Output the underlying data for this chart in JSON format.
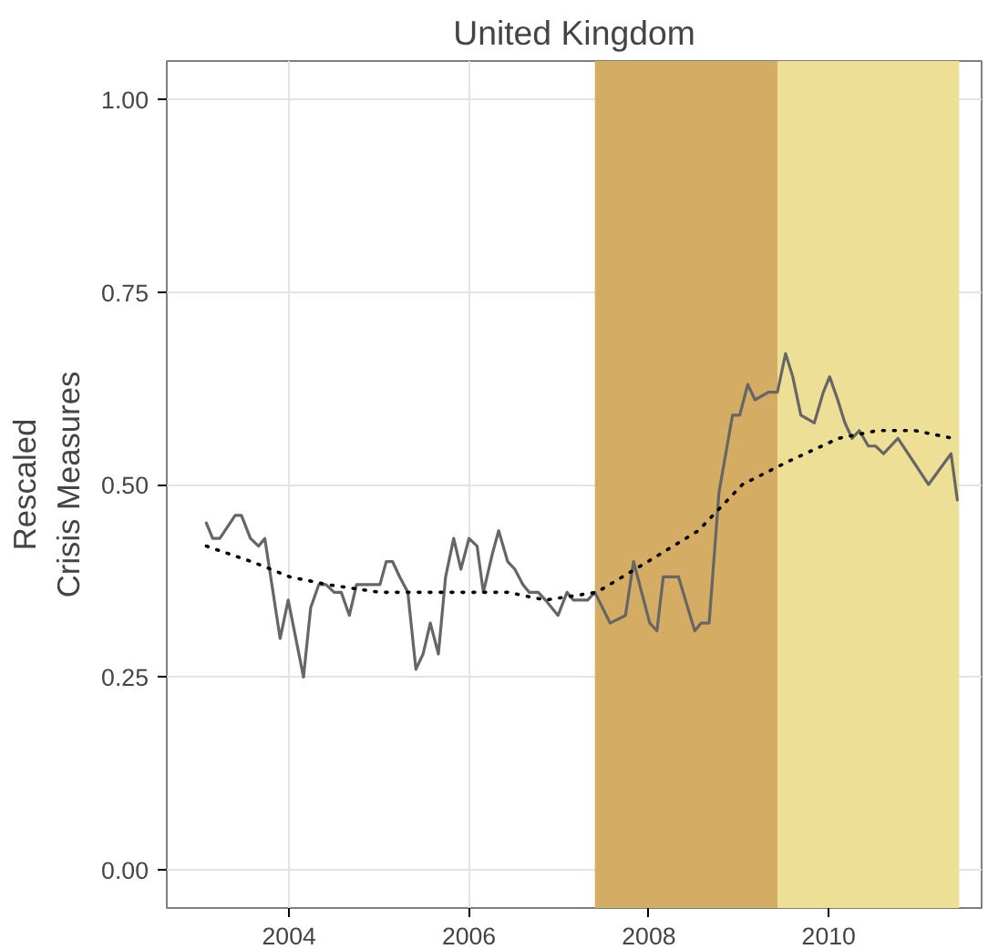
{
  "chart_data": {
    "type": "line",
    "title": "United Kingdom",
    "ylabel": "Rescaled\nCrisis Measures",
    "xlim": [
      2002.64,
      2011.7
    ],
    "ylim": [
      -0.05,
      1.05
    ],
    "xticks": [
      2004,
      2006,
      2008,
      2010
    ],
    "yticks": [
      {
        "value": 0,
        "label": "0.00"
      },
      {
        "value": 0.25,
        "label": "0.25"
      },
      {
        "value": 0.5,
        "label": "0.50"
      },
      {
        "value": 0.75,
        "label": "0.75"
      },
      {
        "value": 1,
        "label": "1.00"
      }
    ],
    "grid": true,
    "bands": [
      {
        "axis": "x",
        "from": 2007.4,
        "to": 2009.43,
        "color": "#d4ac64"
      },
      {
        "axis": "x",
        "from": 2009.43,
        "to": 2011.45,
        "color": "#ede096"
      }
    ],
    "series": [
      {
        "color": "#666666",
        "line_style": "solid",
        "x": [
          2003.08,
          2003.15,
          2003.23,
          2003.4,
          2003.47,
          2003.57,
          2003.66,
          2003.73,
          2003.9,
          2003.99,
          2004.16,
          2004.24,
          2004.33,
          2004.41,
          2004.5,
          2004.58,
          2004.67,
          2004.75,
          2004.84,
          2004.92,
          2005.01,
          2005.08,
          2005.15,
          2005.23,
          2005.32,
          2005.41,
          2005.49,
          2005.57,
          2005.66,
          2005.74,
          2005.83,
          2005.91,
          2006.0,
          2006.09,
          2006.16,
          2006.26,
          2006.33,
          2006.43,
          2006.51,
          2006.6,
          2006.67,
          2006.77,
          2006.85,
          2006.99,
          2007.09,
          2007.16,
          2007.32,
          2007.4,
          2007.57,
          2007.74,
          2007.83,
          2008.01,
          2008.09,
          2008.16,
          2008.33,
          2008.51,
          2008.58,
          2008.67,
          2008.78,
          2008.93,
          2009.01,
          2009.1,
          2009.18,
          2009.33,
          2009.43,
          2009.52,
          2009.6,
          2009.69,
          2009.84,
          2009.94,
          2010.01,
          2010.1,
          2010.18,
          2010.26,
          2010.34,
          2010.44,
          2010.52,
          2010.61,
          2010.77,
          2010.94,
          2011.11,
          2011.36,
          2011.43
        ],
        "values": [
          0.45,
          0.43,
          0.43,
          0.46,
          0.46,
          0.43,
          0.42,
          0.43,
          0.3,
          0.35,
          0.25,
          0.34,
          0.37,
          0.37,
          0.36,
          0.36,
          0.33,
          0.37,
          0.37,
          0.37,
          0.37,
          0.4,
          0.4,
          0.38,
          0.36,
          0.26,
          0.28,
          0.32,
          0.28,
          0.38,
          0.43,
          0.39,
          0.43,
          0.42,
          0.36,
          0.41,
          0.44,
          0.4,
          0.39,
          0.37,
          0.36,
          0.36,
          0.35,
          0.33,
          0.36,
          0.35,
          0.35,
          0.36,
          0.32,
          0.33,
          0.4,
          0.32,
          0.31,
          0.38,
          0.38,
          0.31,
          0.32,
          0.32,
          0.49,
          0.59,
          0.59,
          0.63,
          0.61,
          0.62,
          0.62,
          0.67,
          0.64,
          0.59,
          0.58,
          0.62,
          0.64,
          0.61,
          0.58,
          0.56,
          0.57,
          0.55,
          0.55,
          0.54,
          0.56,
          0.53,
          0.5,
          0.54,
          0.48
        ]
      },
      {
        "color": "#000000",
        "line_style": "dotted",
        "x": [
          2003.08,
          2003.58,
          2004.01,
          2004.43,
          2005.01,
          2005.57,
          2006.0,
          2006.43,
          2006.85,
          2007.42,
          2007.99,
          2008.55,
          2009.04,
          2009.55,
          2010.11,
          2010.54,
          2010.96,
          2011.38
        ],
        "values": [
          0.42,
          0.4,
          0.38,
          0.37,
          0.36,
          0.36,
          0.36,
          0.36,
          0.35,
          0.36,
          0.4,
          0.44,
          0.5,
          0.53,
          0.56,
          0.57,
          0.57,
          0.56
        ]
      }
    ]
  }
}
